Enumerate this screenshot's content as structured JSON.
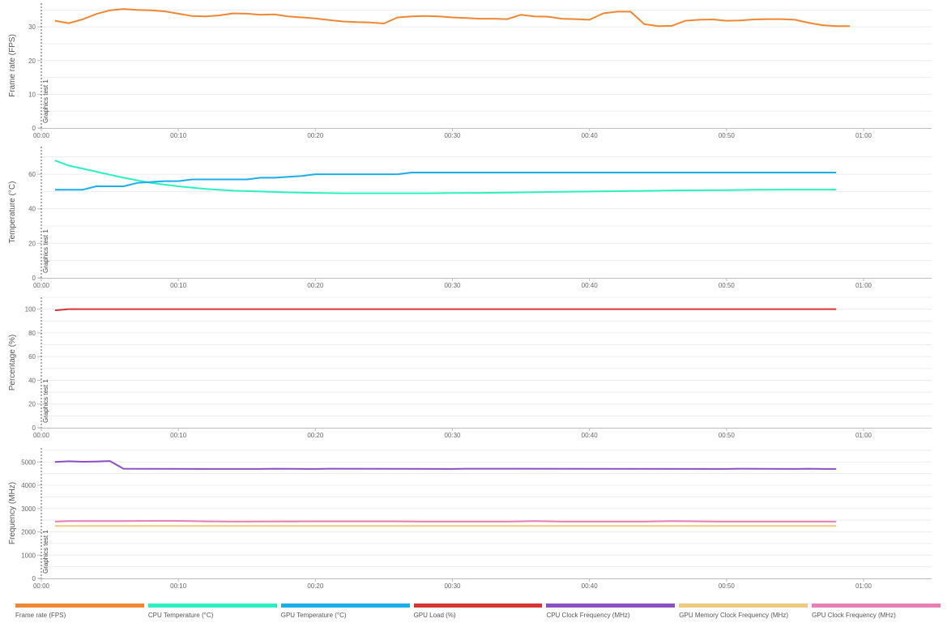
{
  "chart_data": {
    "type": "line",
    "x_axis": {
      "ticks": [
        "00:00",
        "00:10",
        "00:20",
        "00:30",
        "00:40",
        "00:50",
        "01:00"
      ],
      "unit": "seconds",
      "range": [
        0,
        65
      ]
    },
    "marker_label": "Graphics test 1",
    "grid": true,
    "legend_placement": "bottom",
    "panels": [
      {
        "ylabel": "Frame rate (FPS)",
        "ylim": [
          0,
          37
        ],
        "yticks": [
          "0",
          "10",
          "20",
          "30"
        ],
        "ytick_values": [
          0,
          10,
          20,
          30
        ],
        "series": [
          {
            "name": "Frame rate (FPS)",
            "color": "#ef8733",
            "x": [
              1,
              2,
              3,
              4,
              5,
              6,
              7,
              8,
              9,
              10,
              11,
              12,
              13,
              14,
              15,
              16,
              17,
              18,
              19,
              20,
              21,
              22,
              23,
              24,
              25,
              26,
              27,
              28,
              29,
              30,
              31,
              32,
              33,
              34,
              35,
              36,
              37,
              38,
              39,
              40,
              41,
              42,
              43,
              44,
              45,
              46,
              47,
              48,
              49,
              50,
              51,
              52,
              53,
              54,
              55,
              56,
              57,
              58,
              59
            ],
            "values": [
              31.8,
              31.1,
              32.2,
              33.8,
              34.9,
              35.3,
              35.0,
              34.9,
              34.6,
              33.9,
              33.2,
              33.1,
              33.4,
              34.0,
              33.9,
              33.6,
              33.7,
              33.1,
              32.8,
              32.5,
              32.0,
              31.6,
              31.4,
              31.3,
              31.0,
              32.8,
              33.1,
              33.2,
              33.1,
              32.8,
              32.6,
              32.4,
              32.4,
              32.3,
              33.6,
              33.1,
              33.0,
              32.4,
              32.3,
              32.1,
              34.0,
              34.5,
              34.5,
              30.8,
              30.2,
              30.3,
              31.8,
              32.1,
              32.2,
              31.8,
              31.9,
              32.2,
              32.3,
              32.3,
              32.1,
              31.2,
              30.5,
              30.2,
              30.2
            ]
          }
        ]
      },
      {
        "ylabel": "Temperature (°C)",
        "ylim": [
          0,
          76
        ],
        "yticks": [
          "0",
          "20",
          "40",
          "60"
        ],
        "ytick_values": [
          0,
          20,
          40,
          60
        ],
        "series": [
          {
            "name": "CPU Temperature (°C)",
            "color": "#2bf0c1",
            "x": [
              1,
              2,
              4,
              6,
              8,
              10,
              12,
              14,
              16,
              18,
              20,
              22,
              24,
              26,
              28,
              30,
              32,
              34,
              36,
              38,
              40,
              42,
              44,
              46,
              48,
              50,
              52,
              54,
              56,
              58
            ],
            "values": [
              68,
              65,
              61.5,
              58,
              55,
              53,
              51.5,
              50.5,
              50,
              49.5,
              49.2,
              49,
              49,
              49,
              49,
              49.1,
              49.2,
              49.4,
              49.6,
              49.8,
              50,
              50.2,
              50.4,
              50.6,
              50.7,
              50.8,
              51,
              51.1,
              51.1,
              51.1
            ]
          },
          {
            "name": "GPU Temperature (°C)",
            "color": "#1aaeeb",
            "x": [
              1,
              3,
              4,
              6,
              7,
              9,
              10,
              11,
              15,
              16,
              17,
              19,
              20,
              26,
              27,
              58
            ],
            "values": [
              51,
              51,
              53,
              53,
              55,
              56,
              56,
              57,
              57,
              58,
              58,
              59,
              60,
              60,
              61,
              61
            ]
          }
        ]
      },
      {
        "ylabel": "Percentage (%)",
        "ylim": [
          0,
          110
        ],
        "yticks": [
          "0",
          "20",
          "40",
          "60",
          "80",
          "100"
        ],
        "ytick_values": [
          0,
          20,
          40,
          60,
          80,
          100
        ],
        "series": [
          {
            "name": "GPU Load (%)",
            "color": "#d83434",
            "x": [
              1,
              2,
              58
            ],
            "values": [
              99,
              100,
              100
            ]
          }
        ]
      },
      {
        "ylabel": "Frequency (MHz)",
        "ylim": [
          0,
          5600
        ],
        "yticks": [
          "0",
          "1000",
          "2000",
          "3000",
          "4000",
          "5000"
        ],
        "ytick_values": [
          0,
          1000,
          2000,
          3000,
          4000,
          5000
        ],
        "series": [
          {
            "name": "CPU Clock Frequency (MHz)",
            "color": "#8c50c5",
            "x": [
              1,
              2,
              3,
              4,
              5,
              6,
              12,
              16,
              17,
              20,
              21,
              30,
              31,
              50,
              51,
              55,
              56,
              57,
              58
            ],
            "values": [
              5000,
              5030,
              5010,
              5020,
              5040,
              4710,
              4700,
              4700,
              4710,
              4700,
              4710,
              4700,
              4710,
              4700,
              4710,
              4700,
              4710,
              4700,
              4700
            ]
          },
          {
            "name": "GPU Memory Clock Frequency (MHz)",
            "color": "#eeca7e",
            "x": [
              1,
              58
            ],
            "values": [
              2250,
              2250
            ]
          },
          {
            "name": "GPU Clock Frequency (MHz)",
            "color": "#e880b6",
            "x": [
              1,
              2,
              6,
              8,
              10,
              12,
              14,
              20,
              26,
              28,
              34,
              35,
              36,
              38,
              44,
              46,
              48,
              50,
              58
            ],
            "values": [
              2440,
              2460,
              2460,
              2470,
              2470,
              2450,
              2440,
              2450,
              2450,
              2440,
              2440,
              2450,
              2460,
              2440,
              2440,
              2460,
              2450,
              2440,
              2440
            ]
          }
        ]
      }
    ]
  },
  "legend": [
    {
      "label": "Frame rate (FPS)",
      "color": "#ef8733"
    },
    {
      "label": "CPU Temperature (°C)",
      "color": "#2bf0c1"
    },
    {
      "label": "GPU Temperature (°C)",
      "color": "#1aaeeb"
    },
    {
      "label": "GPU Load (%)",
      "color": "#d83434"
    },
    {
      "label": "CPU Clock Frequency (MHz)",
      "color": "#8c50c5"
    },
    {
      "label": "GPU Memory Clock Frequency (MHz)",
      "color": "#eeca7e"
    },
    {
      "label": "GPU Clock Frequency (MHz)",
      "color": "#e880b6"
    }
  ]
}
